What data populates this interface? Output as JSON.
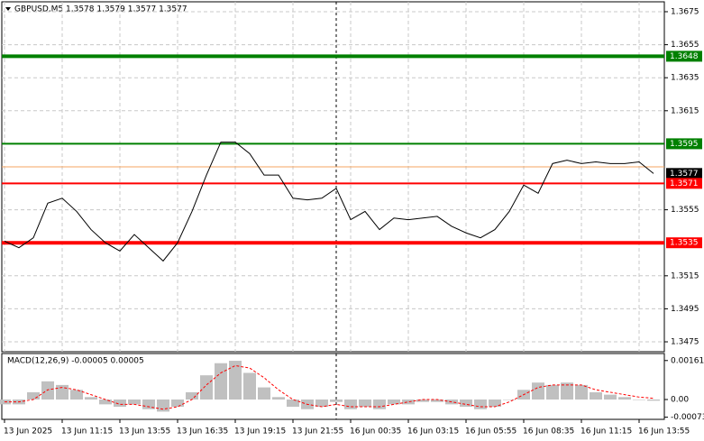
{
  "chart_data": [
    {
      "type": "line",
      "title": "GBPUSD,M5 1.3578 1.3579 1.3577 1.3577",
      "categories": [
        "13 Jun 2025",
        null,
        null,
        null,
        "13 Jun 11:15",
        null,
        null,
        null,
        "13 Jun 13:55",
        null,
        null,
        null,
        "13 Jun 16:35",
        null,
        null,
        null,
        "13 Jun 19:15",
        null,
        null,
        null,
        "13 Jun 21:55",
        null,
        null,
        null,
        "16 Jun 00:35",
        null,
        null,
        null,
        "16 Jun 03:15",
        null,
        null,
        null,
        "16 Jun 05:55",
        null,
        null,
        null,
        "16 Jun 08:35",
        null,
        null,
        null,
        "16 Jun 11:15",
        null,
        null,
        null,
        "16 Jun 13:55",
        null
      ],
      "series": [
        {
          "color": "#000000",
          "values": [
            1.3536,
            1.3532,
            1.3538,
            1.3559,
            1.3562,
            1.3554,
            1.3543,
            1.3535,
            1.353,
            1.354,
            1.3532,
            1.3524,
            1.3535,
            1.3554,
            1.3576,
            1.3596,
            1.3596,
            1.3589,
            1.3576,
            1.3576,
            1.3562,
            1.3561,
            1.3562,
            1.3568,
            1.3549,
            1.3554,
            1.3543,
            1.355,
            1.3549,
            1.355,
            1.3551,
            1.3545,
            1.3541,
            1.3538,
            1.3543,
            1.3554,
            1.357,
            1.3565,
            1.3583,
            1.3585,
            1.3583,
            1.3584,
            1.3583,
            1.3583,
            1.3584,
            1.3577
          ]
        }
      ],
      "levels": [
        {
          "value": 1.3648,
          "color": "#008000",
          "style": "thick"
        },
        {
          "value": 1.3595,
          "color": "#008000",
          "style": "thin"
        },
        {
          "value": 1.3581,
          "color": "#f4a460",
          "style": "line-only"
        },
        {
          "value": 1.3577,
          "color": "#000000",
          "style": "label-only"
        },
        {
          "value": 1.3571,
          "color": "#ff0000",
          "style": "thin"
        },
        {
          "value": 1.3535,
          "color": "#ff0000",
          "style": "thick"
        }
      ],
      "ylim": [
        1.3469,
        1.3681
      ],
      "yticks": [
        1.3675,
        1.3655,
        1.3635,
        1.3615,
        1.3555,
        1.3515,
        1.3495,
        1.3475
      ],
      "grid": true
    },
    {
      "type": "macd",
      "title": "MACD(12,26,9) -0.00005 0.00005",
      "series": [
        {
          "type": "bar",
          "color": "#c0c0c0",
          "values": [
            -0.0002,
            -0.0002,
            0.0003,
            0.00075,
            0.0006,
            0.0004,
            0.0001,
            -0.0002,
            -0.0003,
            -0.0002,
            -0.0004,
            -0.0005,
            -0.0003,
            0.0003,
            0.001,
            0.0015,
            0.0016,
            0.0011,
            0.0005,
            0.0001,
            -0.0003,
            -0.0004,
            -0.0003,
            -0.0001,
            -0.0004,
            -0.0003,
            -0.0004,
            -0.0002,
            -0.0002,
            -0.0001,
            -0.0001,
            -0.0002,
            -0.0003,
            -0.0004,
            -0.0003,
            0.0,
            0.0004,
            0.0007,
            0.0006,
            0.0007,
            0.0006,
            0.0003,
            0.0002,
            0.0001,
            0.0,
            -5e-05
          ]
        },
        {
          "type": "line",
          "color": "#ff0000",
          "dash": true,
          "values": [
            -0.0001,
            -0.0001,
            0.0,
            0.0004,
            0.0005,
            0.0004,
            0.0002,
            0.0,
            -0.0002,
            -0.0002,
            -0.0003,
            -0.0004,
            -0.0003,
            0.0,
            0.0006,
            0.0011,
            0.0014,
            0.0013,
            0.0009,
            0.0004,
            0.0,
            -0.0002,
            -0.0003,
            -0.0002,
            -0.0003,
            -0.0003,
            -0.0003,
            -0.0002,
            -0.0001,
            0.0,
            0.0,
            -0.0001,
            -0.0002,
            -0.0003,
            -0.0003,
            -0.0001,
            0.0002,
            0.0005,
            0.0006,
            0.0006,
            0.0006,
            0.0004,
            0.0003,
            0.0002,
            0.0001,
            5e-05
          ]
        }
      ],
      "ylim": [
        -0.00082,
        0.0019
      ],
      "yticks": [
        0.00161,
        {
          "value": 0,
          "label": "0.00"
        },
        -0.00073
      ],
      "grid": false
    }
  ]
}
